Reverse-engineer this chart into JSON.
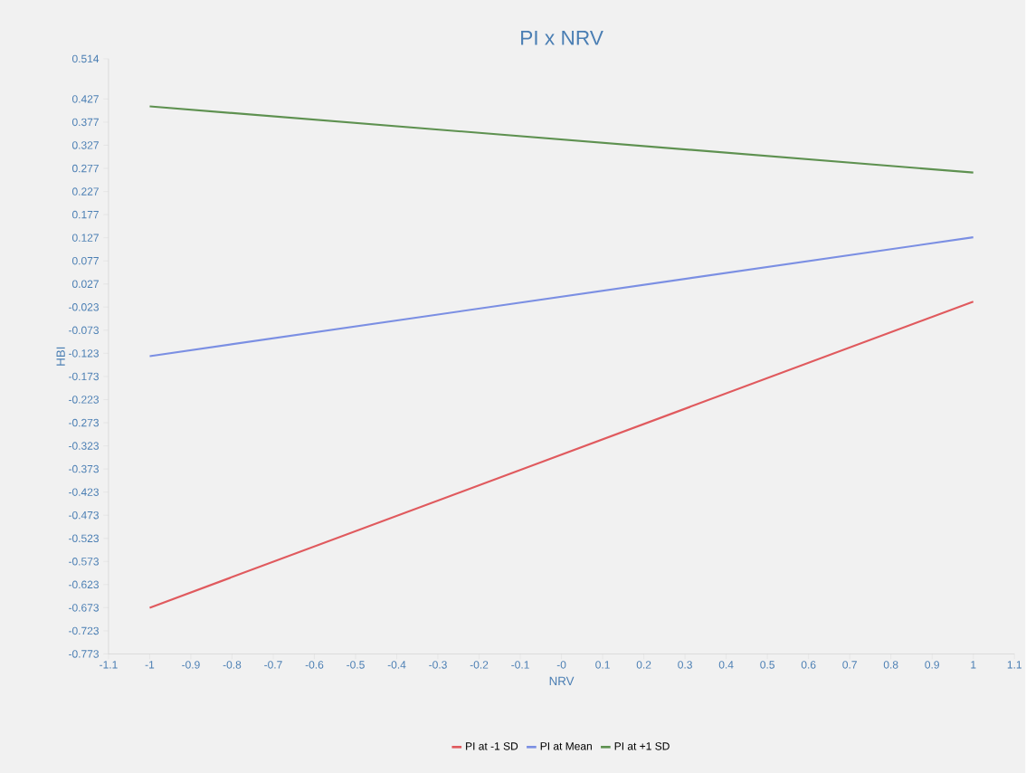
{
  "chart_data": {
    "type": "line",
    "title": "PI x NRV",
    "xlabel": "NRV",
    "ylabel": "HBI",
    "x": [
      -1,
      1
    ],
    "series": [
      {
        "name": "PI at -1 SD",
        "color": "#e05a5e",
        "values": [
          -0.673,
          -0.011
        ]
      },
      {
        "name": "PI at Mean",
        "color": "#7b8fe3",
        "values": [
          -0.129,
          0.128
        ]
      },
      {
        "name": "PI at +1 SD",
        "color": "#5e9150",
        "values": [
          0.411,
          0.268
        ]
      }
    ],
    "xlim": [
      -1.1,
      1.1
    ],
    "ylim": [
      -0.773,
      0.514
    ],
    "xticks": [
      -1.1,
      -1,
      -0.9,
      -0.8,
      -0.7,
      -0.6,
      -0.5,
      -0.4,
      -0.3,
      -0.2,
      -0.1,
      {
        "value": 0,
        "label": "-0"
      },
      0.1,
      0.2,
      0.3,
      0.4,
      0.5,
      0.6,
      0.7,
      0.8,
      0.9,
      1,
      1.1
    ],
    "yticks": [
      -0.773,
      -0.723,
      -0.673,
      -0.623,
      -0.573,
      -0.523,
      -0.473,
      -0.423,
      -0.373,
      -0.323,
      -0.273,
      -0.223,
      -0.173,
      -0.123,
      -0.073,
      -0.023,
      0.027,
      0.077,
      0.127,
      0.177,
      0.227,
      0.277,
      0.327,
      0.377,
      0.427,
      0.514
    ],
    "grid": false,
    "legend": "bottom",
    "marker": "none",
    "line_style": "solid"
  }
}
